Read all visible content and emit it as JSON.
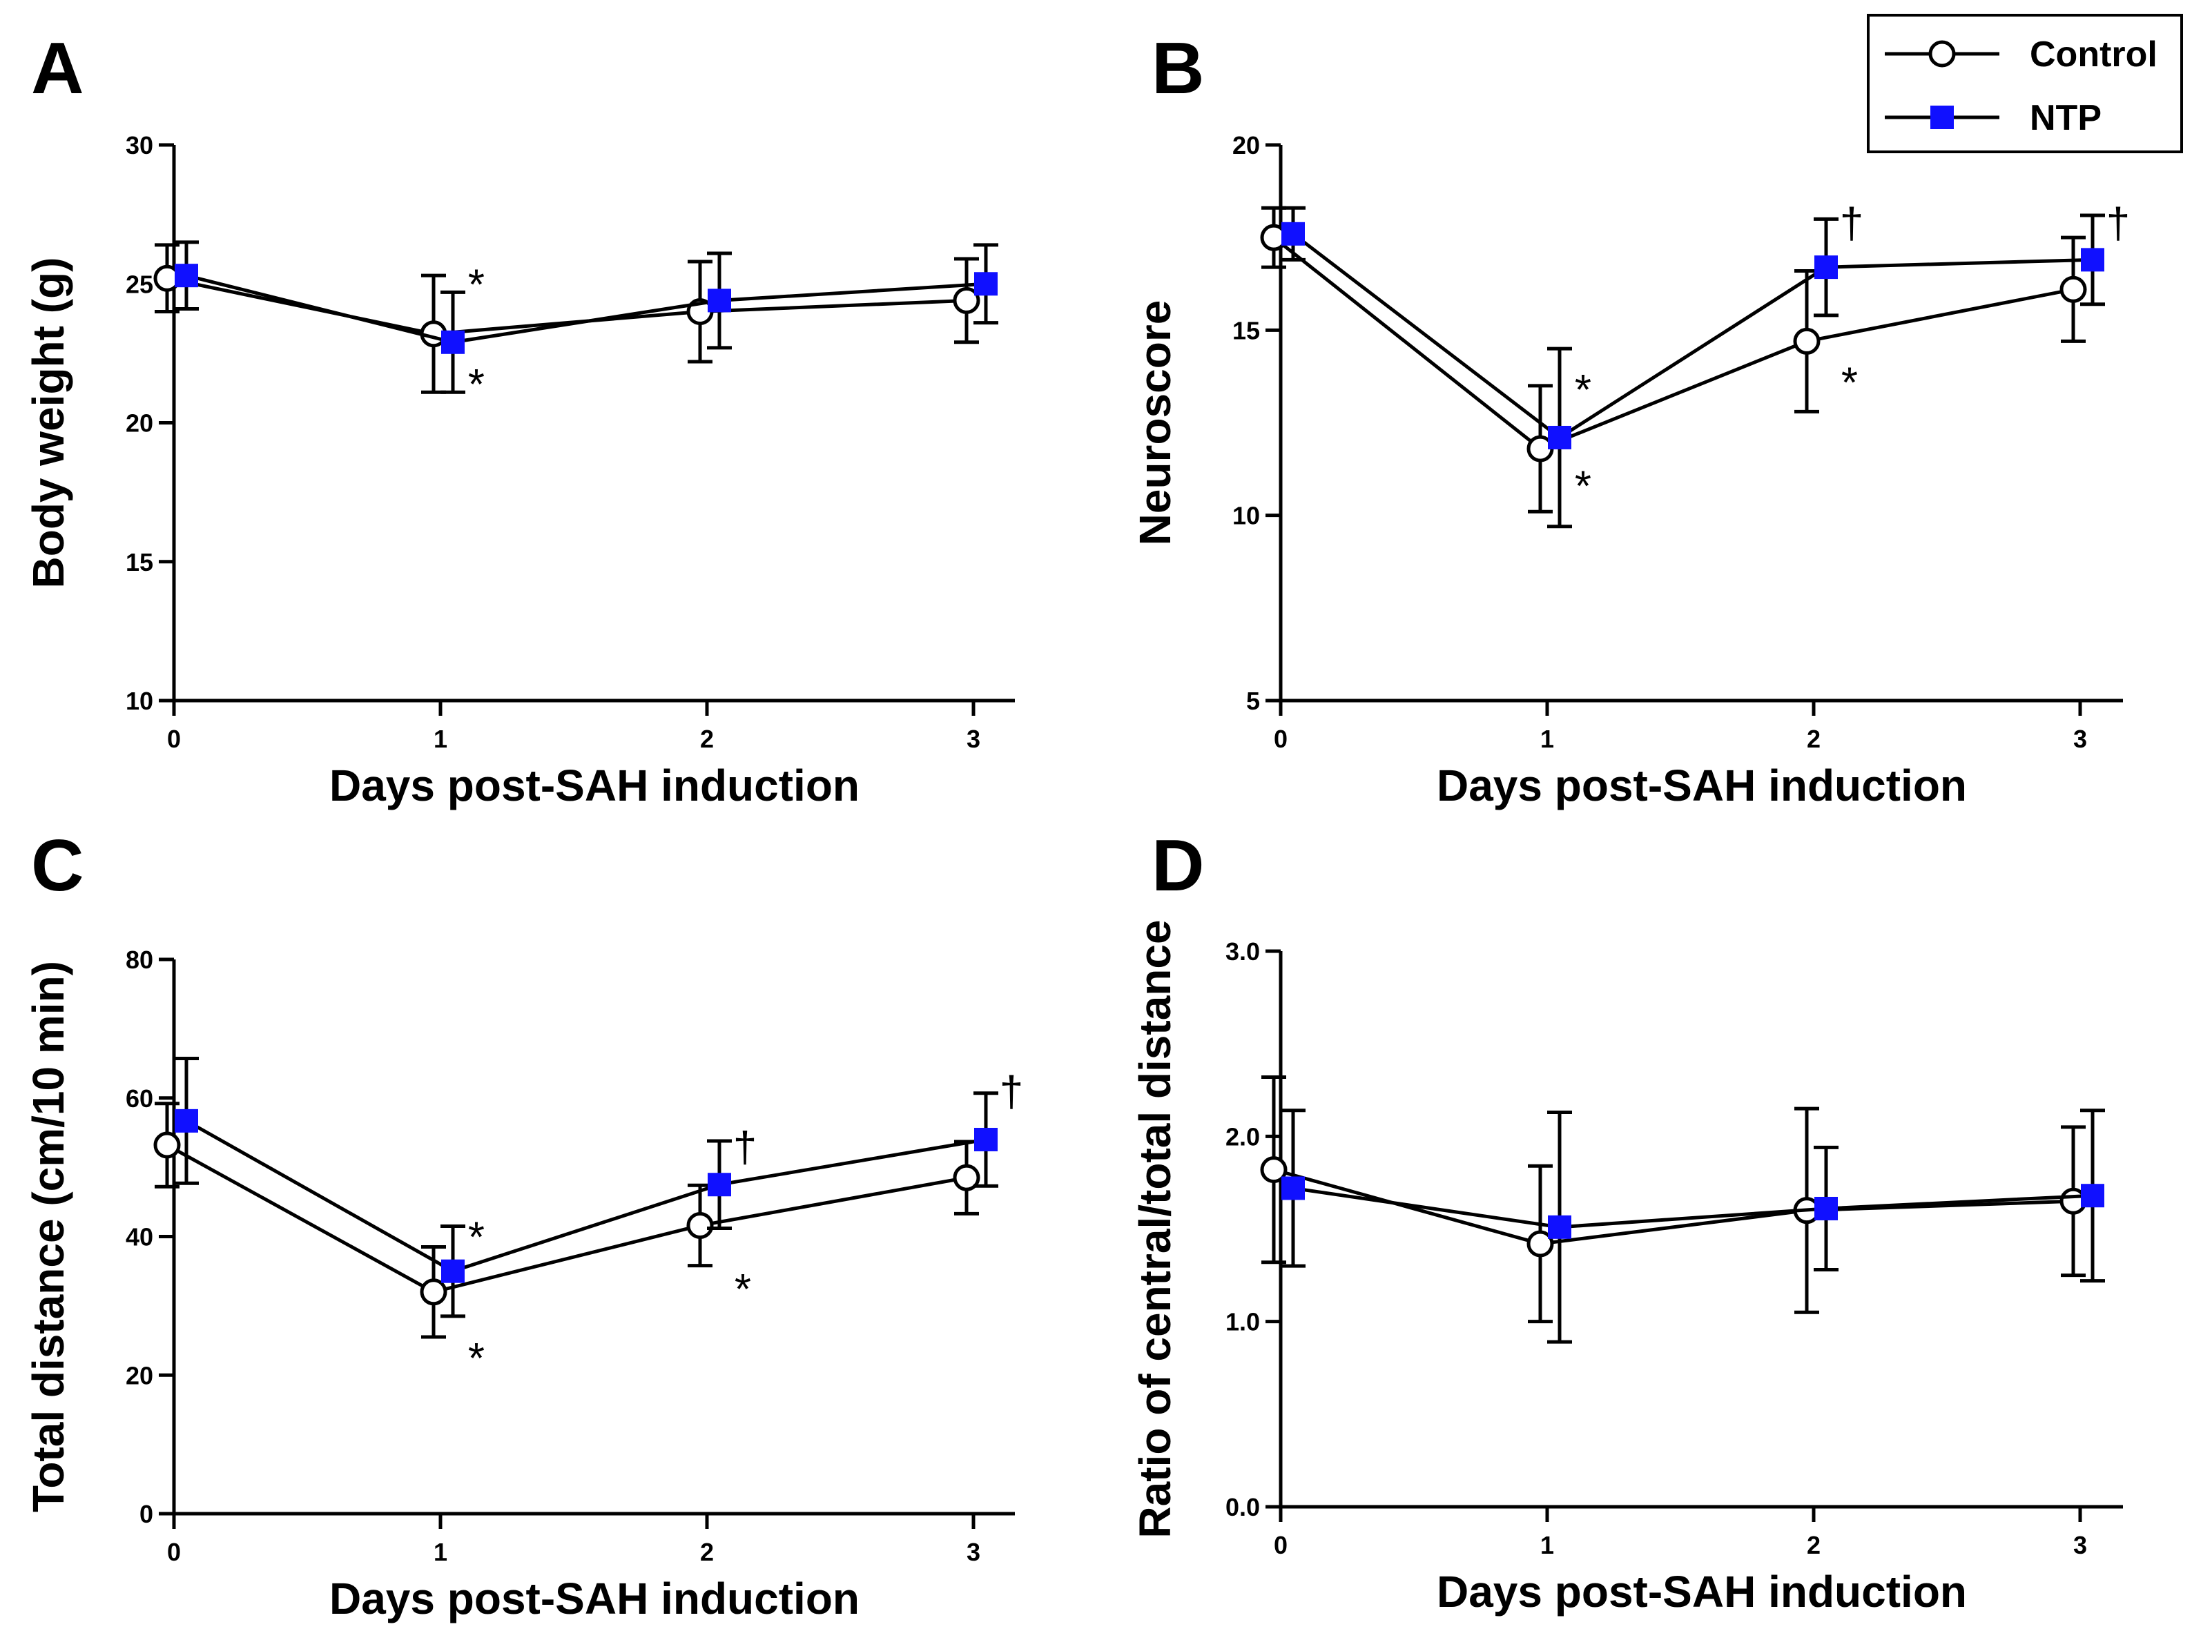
{
  "legend": {
    "control": {
      "label": "Control",
      "marker": "open-circle",
      "color": "#ffffff"
    },
    "ntp": {
      "label": "NTP",
      "marker": "filled-square",
      "color": "#1010ff"
    }
  },
  "chart_data": [
    {
      "panel": "A",
      "type": "line",
      "xlabel": "Days post-SAH induction",
      "ylabel": "Body weight (g)",
      "x": [
        0,
        1,
        2,
        3
      ],
      "xticks": [
        "0",
        "1",
        "2",
        "3"
      ],
      "ylim": [
        10,
        30
      ],
      "yticks": [
        "10",
        "15",
        "20",
        "25",
        "30"
      ],
      "series": [
        {
          "name": "Control",
          "values": [
            25.2,
            23.2,
            24.0,
            24.4
          ],
          "err": [
            1.2,
            2.1,
            1.8,
            1.5
          ]
        },
        {
          "name": "NTP",
          "values": [
            25.3,
            22.9,
            24.4,
            25.0
          ],
          "err": [
            1.2,
            1.8,
            1.7,
            1.4
          ]
        }
      ],
      "annotations": [
        {
          "text": "*",
          "series": "Control",
          "x": 1,
          "y": 25.0
        },
        {
          "text": "*",
          "series": "NTP",
          "x": 1,
          "y": 21.4
        }
      ]
    },
    {
      "panel": "B",
      "type": "line",
      "xlabel": "Days post-SAH induction",
      "ylabel": "Neuroscore",
      "x": [
        0,
        1,
        2,
        3
      ],
      "xticks": [
        "0",
        "1",
        "2",
        "3"
      ],
      "ylim": [
        5,
        20
      ],
      "yticks": [
        "5",
        "10",
        "15",
        "20"
      ],
      "series": [
        {
          "name": "Control",
          "values": [
            17.5,
            11.8,
            14.7,
            16.1
          ],
          "err": [
            0.8,
            1.7,
            1.9,
            1.4
          ]
        },
        {
          "name": "NTP",
          "values": [
            17.6,
            12.1,
            16.7,
            16.9
          ],
          "err": [
            0.7,
            2.4,
            1.3,
            1.2
          ]
        }
      ],
      "annotations": [
        {
          "text": "*",
          "series": "NTP",
          "x": 1,
          "y": 13.4
        },
        {
          "text": "*",
          "series": "Control",
          "x": 1,
          "y": 10.8
        },
        {
          "text": "*",
          "series": "Control",
          "x": 2,
          "y": 13.6
        },
        {
          "text": "†",
          "series": "NTP",
          "x": 2,
          "y": 17.9
        },
        {
          "text": "†",
          "series": "NTP",
          "x": 3,
          "y": 17.9
        }
      ]
    },
    {
      "panel": "C",
      "type": "line",
      "xlabel": "Days post-SAH induction",
      "ylabel": "Total distance (cm/10 min)",
      "x": [
        0,
        1,
        2,
        3
      ],
      "xticks": [
        "0",
        "1",
        "2",
        "3"
      ],
      "ylim": [
        0,
        80
      ],
      "yticks": [
        "0",
        "20",
        "40",
        "60",
        "80"
      ],
      "series": [
        {
          "name": "Control",
          "values": [
            53.2,
            32.0,
            41.6,
            48.5
          ],
          "err": [
            6.0,
            6.5,
            5.8,
            5.2
          ]
        },
        {
          "name": "NTP",
          "values": [
            56.7,
            35.0,
            47.5,
            54.0
          ],
          "err": [
            9.0,
            6.5,
            6.3,
            6.7
          ]
        }
      ],
      "annotations": [
        {
          "text": "*",
          "series": "NTP",
          "x": 1,
          "y": 40.0
        },
        {
          "text": "*",
          "series": "Control",
          "x": 1,
          "y": 22.5
        },
        {
          "text": "*",
          "series": "Control",
          "x": 2,
          "y": 32.5
        },
        {
          "text": "†",
          "series": "NTP",
          "x": 2,
          "y": 53.0
        },
        {
          "text": "†",
          "series": "NTP",
          "x": 3,
          "y": 61.0
        }
      ]
    },
    {
      "panel": "D",
      "type": "line",
      "xlabel": "Days post-SAH induction",
      "ylabel": "Ratio of central/total distance",
      "x": [
        0,
        1,
        2,
        3
      ],
      "xticks": [
        "0",
        "1",
        "2",
        "3"
      ],
      "ylim": [
        0.0,
        3.0
      ],
      "yticks": [
        "0.0",
        "1.0",
        "2.0",
        "3.0"
      ],
      "series": [
        {
          "name": "Control",
          "values": [
            1.82,
            1.42,
            1.6,
            1.65
          ],
          "err": [
            0.5,
            0.42,
            0.55,
            0.4
          ]
        },
        {
          "name": "NTP",
          "values": [
            1.72,
            1.51,
            1.61,
            1.68
          ],
          "err": [
            0.42,
            0.62,
            0.33,
            0.46
          ]
        }
      ],
      "annotations": []
    }
  ]
}
